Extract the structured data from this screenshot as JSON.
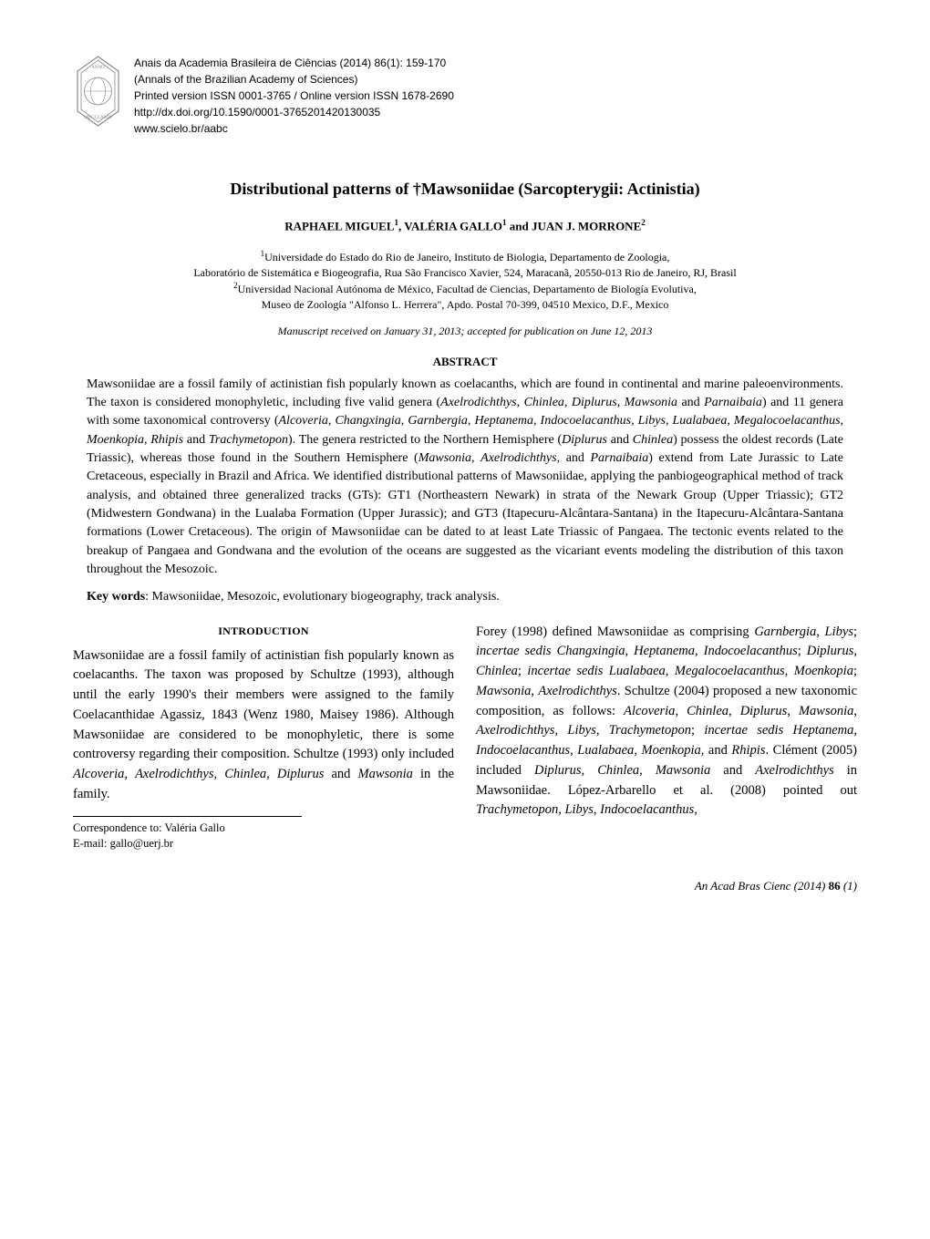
{
  "publication": {
    "line1": "Anais da Academia Brasileira de Ciências (2014) 86(1): 159-170",
    "line2": "(Annals of the Brazilian Academy of Sciences)",
    "line3": "Printed version ISSN 0001-3765 / Online version ISSN 1678-2690",
    "line4": "http://dx.doi.org/10.1590/0001-3765201420130035",
    "line5": "www.scielo.br/aabc"
  },
  "title": "Distributional patterns of †Mawsoniidae (Sarcopterygii: Actinistia)",
  "authors_html": "RAPHAEL MIGUEL<sup>1</sup>, VALÉRIA GALLO<sup>1</sup> and JUAN J. MORRONE<sup>2</sup>",
  "affiliations": {
    "line1_html": "<sup>1</sup>Universidade do Estado do Rio de Janeiro, Instituto de Biologia, Departamento de Zoologia,",
    "line2": "Laboratório de Sistemática e Biogeografia, Rua São Francisco Xavier, 524, Maracanã, 20550-013 Rio de Janeiro, RJ, Brasil",
    "line3_html": "<sup>2</sup>Universidad Nacional Autónoma de México, Facultad de Ciencias, Departamento de Biología Evolutiva,",
    "line4": "Museo de Zoología \"Alfonso L. Herrera\", Apdo. Postal 70-399, 04510 Mexico, D.F., Mexico"
  },
  "manuscript_date": "Manuscript received on January 31, 2013; accepted for publication on June 12, 2013",
  "abstract": {
    "heading": "ABSTRACT",
    "text_html": "Mawsoniidae are a fossil family of actinistian fish popularly known as coelacanths, which are found in continental and marine paleoenvironments. The taxon is considered monophyletic, including five valid genera (<span class='italic'>Axelrodichthys</span>, <span class='italic'>Chinlea</span>, <span class='italic'>Diplurus</span>, <span class='italic'>Mawsonia</span> and <span class='italic'>Parnaibaia</span>) and 11 genera with some taxonomical controversy (<span class='italic'>Alcoveria</span>, <span class='italic'>Changxingia</span>, <span class='italic'>Garnbergia</span>, <span class='italic'>Heptanema</span>, <span class='italic'>Indocoelacanthus</span>, <span class='italic'>Libys</span>, <span class='italic'>Lualabaea</span>, <span class='italic'>Megalocoelacanthus</span>, <span class='italic'>Moenkopia</span>, <span class='italic'>Rhipis</span> and <span class='italic'>Trachymetopon</span>). The genera restricted to the Northern Hemisphere (<span class='italic'>Diplurus</span> and <span class='italic'>Chinlea</span>) possess the oldest records (Late Triassic), whereas those found in the Southern Hemisphere (<span class='italic'>Mawsonia</span>, <span class='italic'>Axelrodichthys</span>, and <span class='italic'>Parnaibaia</span>) extend from Late Jurassic to Late Cretaceous, especially in Brazil and Africa. We identified distributional patterns of Mawsoniidae, applying the panbiogeographical method of track analysis, and obtained three generalized tracks (GTs): GT1 (Northeastern Newark) in strata of the Newark Group (Upper Triassic); GT2 (Midwestern Gondwana) in the Lualaba Formation (Upper Jurassic); and GT3 (Itapecuru-Alcântara-Santana) in the Itapecuru-Alcântara-Santana formations (Lower Cretaceous). The origin of Mawsoniidae can be dated to at least Late Triassic of Pangaea. The tectonic events related to the breakup of Pangaea and Gondwana and the evolution of the oceans are suggested as the vicariant events modeling the distribution of this taxon throughout the Mesozoic."
  },
  "keywords": {
    "label": "Key words",
    "text": ": Mawsoniidae, Mesozoic, evolutionary biogeography, track analysis."
  },
  "intro_heading": "INTRODUCTION",
  "column_left_html": "Mawsoniidae are a fossil family of actinistian fish popularly known as coelacanths. The taxon was proposed by Schultze (1993), although until the early 1990's their members were assigned to the family Coelacanthidae Agassiz, 1843 (Wenz 1980, Maisey 1986). Although Mawsoniidae are considered to be monophyletic, there is some controversy regarding their composition. Schultze (1993) only included <span class='italic'>Alcoveria</span>, <span class='italic'>Axelrodichthys</span>, <span class='italic'>Chinlea</span>, <span class='italic'>Diplurus</span> and <span class='italic'>Mawsonia</span> in the family.",
  "column_right_html": "Forey (1998) defined Mawsoniidae as comprising <span class='italic'>Garnbergia</span>, <span class='italic'>Libys</span>; <span class='italic'>incertae sedis Changxingia</span>, <span class='italic'>Heptanema</span>, <span class='italic'>Indocoelacanthus</span>; <span class='italic'>Diplurus</span>, <span class='italic'>Chinlea</span>; <span class='italic'>incertae sedis Lualabaea</span>, <span class='italic'>Megalocoelacanthus</span>, <span class='italic'>Moenkopia</span>; <span class='italic'>Mawsonia</span>, <span class='italic'>Axelrodichthys</span>. Schultze (2004) proposed a new taxonomic composition, as follows: <span class='italic'>Alcoveria</span>, <span class='italic'>Chinlea</span>, <span class='italic'>Diplurus</span>, <span class='italic'>Mawsonia</span>, <span class='italic'>Axelrodichthys</span>, <span class='italic'>Libys</span>, <span class='italic'>Trachymetopon</span>; <span class='italic'>incertae sedis Heptanema</span>, <span class='italic'>Indocoelacanthus</span>, <span class='italic'>Lualabaea</span>, <span class='italic'>Moenkopia</span>, and <span class='italic'>Rhipis</span>. Clément (2005) included <span class='italic'>Diplurus</span>, <span class='italic'>Chinlea</span>, <span class='italic'>Mawsonia</span> and <span class='italic'>Axelrodichthys</span> in Mawsoniidae. López-Arbarello et al. (2008) pointed out <span class='italic'>Trachymetopon</span>, <span class='italic'>Libys</span>, <span class='italic'>Indocoelacanthus</span>,",
  "correspondence": {
    "line1": "Correspondence to: Valéria Gallo",
    "line2": "E-mail: gallo@uerj.br"
  },
  "footer_html": "<span class='italic'>An Acad Bras Cienc</span> (2014) <span class='bold'>86</span> (1)",
  "logo": {
    "stroke_color": "#666666",
    "fill_color": "#ffffff"
  }
}
